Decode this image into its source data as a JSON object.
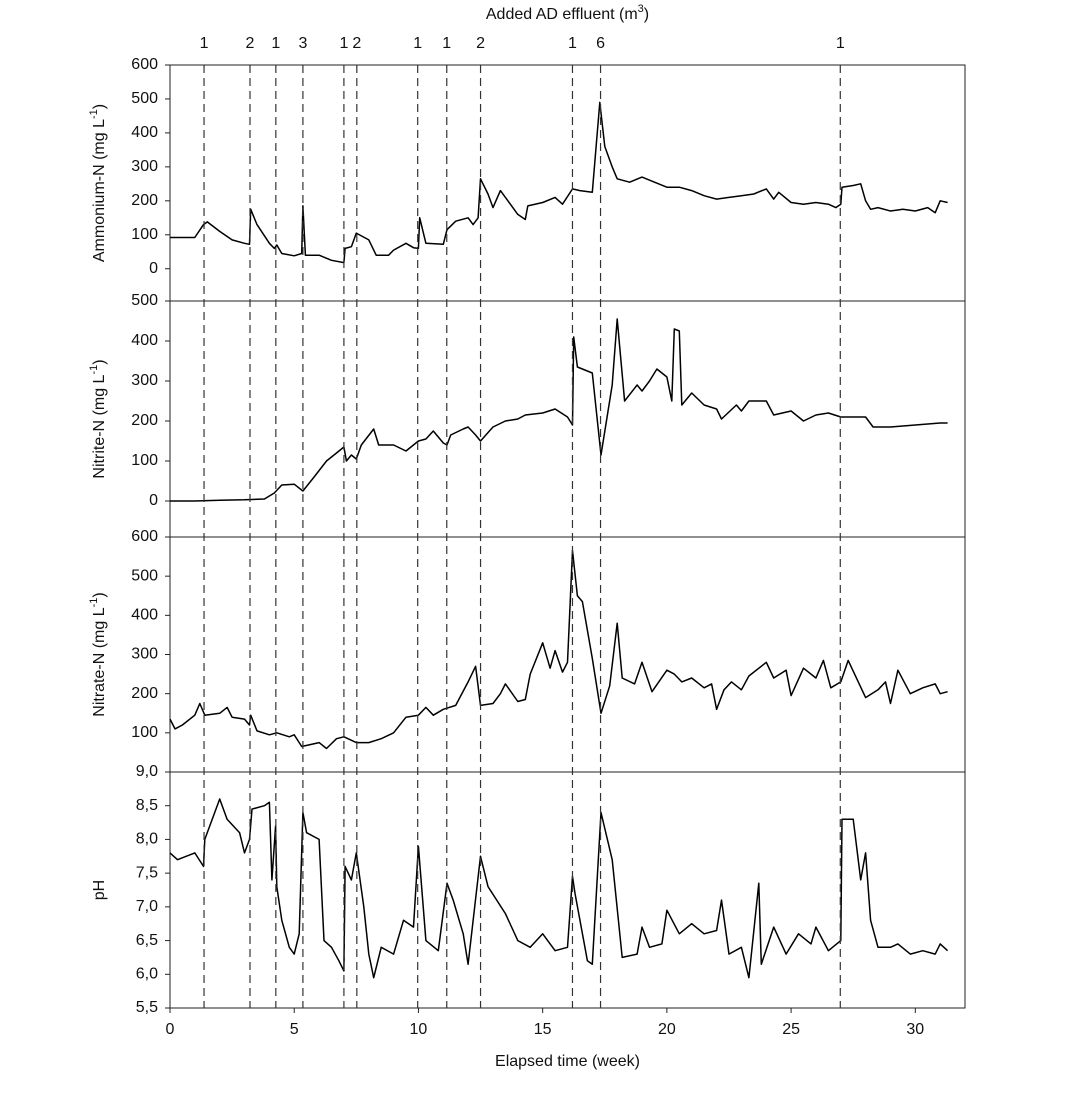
{
  "effluent_additions": {
    "label_parts": [
      "Added AD effluent (m",
      "3",
      ")"
    ],
    "events": [
      {
        "week": 1.37,
        "amount": 1
      },
      {
        "week": 3.22,
        "amount": 2
      },
      {
        "week": 4.26,
        "amount": 1
      },
      {
        "week": 5.35,
        "amount": 3
      },
      {
        "week": 7.0,
        "amount": 1
      },
      {
        "week": 7.52,
        "amount": 2
      },
      {
        "week": 9.97,
        "amount": 1
      },
      {
        "week": 11.14,
        "amount": 1
      },
      {
        "week": 12.5,
        "amount": 2
      },
      {
        "week": 16.2,
        "amount": 1
      },
      {
        "week": 17.33,
        "amount": 6
      },
      {
        "week": 26.98,
        "amount": 1
      }
    ]
  },
  "chart_data": [
    {
      "type": "line",
      "ylabel_parts": [
        "Ammonium-N (mg L",
        "-1",
        ")"
      ],
      "xlim": [
        0,
        32
      ],
      "ylim": [
        -95,
        600
      ],
      "yticks": [
        0,
        100,
        200,
        300,
        400,
        500,
        600
      ],
      "color": "#000000",
      "x": [
        0,
        0.5,
        1.0,
        1.35,
        1.5,
        2.0,
        2.5,
        3.0,
        3.2,
        3.25,
        3.5,
        4.0,
        4.2,
        4.3,
        4.5,
        5.0,
        5.3,
        5.35,
        5.45,
        6.0,
        6.5,
        7.0,
        7.05,
        7.3,
        7.5,
        8.0,
        8.3,
        8.8,
        9.0,
        9.5,
        9.8,
        10.0,
        10.05,
        10.3,
        11.0,
        11.15,
        11.5,
        12.0,
        12.2,
        12.4,
        12.5,
        12.8,
        13.0,
        13.3,
        13.6,
        14.0,
        14.3,
        14.4,
        15.0,
        15.5,
        15.8,
        16.2,
        16.5,
        17.0,
        17.3,
        17.5,
        17.8,
        18.0,
        18.5,
        19.0,
        19.5,
        20.0,
        20.5,
        21.0,
        21.5,
        22.0,
        22.5,
        23.0,
        23.5,
        24.0,
        24.3,
        24.5,
        25.0,
        25.5,
        26.0,
        26.5,
        26.8,
        27.0,
        27.05,
        27.5,
        27.8,
        28.0,
        28.2,
        28.5,
        29.0,
        29.5,
        30.0,
        30.5,
        30.8,
        31.0,
        31.3
      ],
      "values": [
        92,
        92,
        92,
        130,
        138,
        110,
        85,
        75,
        72,
        175,
        130,
        75,
        60,
        70,
        45,
        38,
        45,
        185,
        40,
        40,
        25,
        18,
        60,
        65,
        105,
        85,
        40,
        40,
        55,
        75,
        62,
        60,
        150,
        75,
        72,
        115,
        140,
        150,
        130,
        150,
        265,
        220,
        180,
        230,
        200,
        160,
        145,
        185,
        195,
        210,
        190,
        235,
        230,
        225,
        490,
        360,
        300,
        265,
        255,
        270,
        255,
        240,
        240,
        230,
        215,
        205,
        210,
        215,
        220,
        235,
        205,
        225,
        195,
        190,
        195,
        190,
        180,
        190,
        240,
        245,
        250,
        200,
        175,
        180,
        170,
        175,
        170,
        180,
        165,
        200,
        195
      ]
    },
    {
      "type": "line",
      "ylabel_parts": [
        "Nitrite-N (mg L",
        "-1",
        ")"
      ],
      "xlim": [
        0,
        32
      ],
      "ylim": [
        -90,
        500
      ],
      "yticks": [
        0,
        100,
        200,
        300,
        400,
        500
      ],
      "color": "#000000",
      "x": [
        0,
        1,
        2,
        3,
        3.8,
        4.2,
        4.5,
        5.0,
        5.35,
        5.8,
        6.3,
        6.7,
        7.0,
        7.1,
        7.3,
        7.5,
        7.7,
        8.2,
        8.4,
        9.0,
        9.5,
        10.0,
        10.3,
        10.6,
        11.0,
        11.15,
        11.3,
        11.8,
        12.0,
        12.3,
        12.5,
        13.0,
        13.5,
        14.0,
        14.3,
        15.0,
        15.5,
        16.0,
        16.2,
        16.25,
        16.4,
        17.0,
        17.35,
        17.8,
        18.0,
        18.3,
        18.8,
        19.0,
        19.3,
        19.6,
        20.0,
        20.2,
        20.3,
        20.5,
        20.6,
        21.0,
        21.5,
        22.0,
        22.2,
        22.8,
        23.0,
        23.3,
        24.0,
        24.3,
        25.0,
        25.5,
        26.0,
        26.5,
        27.0,
        28.0,
        28.3,
        29.0,
        30.0,
        31.0,
        31.3
      ],
      "values": [
        0,
        0,
        2,
        3,
        5,
        20,
        40,
        42,
        25,
        60,
        100,
        120,
        135,
        100,
        115,
        105,
        140,
        180,
        140,
        140,
        125,
        150,
        155,
        175,
        145,
        140,
        165,
        180,
        185,
        165,
        150,
        185,
        200,
        205,
        215,
        220,
        230,
        210,
        190,
        410,
        335,
        320,
        115,
        290,
        455,
        250,
        290,
        275,
        300,
        330,
        310,
        250,
        430,
        425,
        240,
        270,
        240,
        230,
        205,
        240,
        225,
        250,
        250,
        215,
        225,
        200,
        215,
        220,
        210,
        210,
        185,
        185,
        190,
        195,
        195
      ]
    },
    {
      "type": "line",
      "ylabel_parts": [
        "Nitrate-N (mg L",
        "-1",
        ")"
      ],
      "xlim": [
        0,
        32
      ],
      "ylim": [
        0,
        600
      ],
      "yticks": [
        100,
        200,
        300,
        400,
        500,
        600
      ],
      "color": "#000000",
      "x": [
        0,
        0.2,
        0.5,
        1.0,
        1.2,
        1.4,
        2.0,
        2.3,
        2.5,
        3.0,
        3.2,
        3.25,
        3.5,
        4.0,
        4.3,
        4.8,
        5.0,
        5.3,
        6.0,
        6.3,
        6.7,
        7.0,
        7.5,
        8.0,
        8.5,
        9.0,
        9.5,
        10.0,
        10.3,
        10.6,
        11.0,
        11.5,
        12.0,
        12.3,
        12.5,
        13.0,
        13.3,
        13.5,
        14.0,
        14.3,
        14.5,
        15.0,
        15.3,
        15.5,
        15.8,
        16.0,
        16.2,
        16.4,
        16.6,
        17.0,
        17.35,
        17.7,
        18.0,
        18.2,
        18.7,
        19.0,
        19.4,
        20.0,
        20.3,
        20.6,
        21.0,
        21.5,
        21.8,
        22.0,
        22.3,
        22.6,
        23.0,
        23.3,
        24.0,
        24.3,
        24.8,
        25.0,
        25.5,
        26.0,
        26.3,
        26.6,
        27.0,
        27.3,
        28.0,
        28.5,
        28.8,
        29.0,
        29.3,
        29.8,
        30.3,
        30.8,
        31.0,
        31.3
      ],
      "values": [
        135,
        110,
        120,
        145,
        175,
        145,
        150,
        165,
        140,
        135,
        120,
        145,
        105,
        95,
        100,
        90,
        95,
        65,
        75,
        60,
        85,
        90,
        75,
        75,
        85,
        100,
        140,
        145,
        165,
        145,
        160,
        170,
        230,
        270,
        170,
        175,
        200,
        225,
        180,
        185,
        250,
        330,
        265,
        310,
        255,
        280,
        565,
        450,
        435,
        290,
        150,
        220,
        380,
        240,
        225,
        280,
        205,
        260,
        250,
        230,
        240,
        215,
        225,
        160,
        210,
        230,
        210,
        245,
        280,
        240,
        260,
        195,
        265,
        240,
        285,
        215,
        230,
        285,
        190,
        210,
        230,
        175,
        260,
        200,
        215,
        225,
        200,
        205
      ]
    },
    {
      "type": "line",
      "ylabel_parts": [
        "pH"
      ],
      "xlim": [
        0,
        32
      ],
      "ylim": [
        5.5,
        9.0
      ],
      "yticks": [
        {
          "value": 5.5,
          "label": "5,5"
        },
        {
          "value": 6.0,
          "label": "6,0"
        },
        {
          "value": 6.5,
          "label": "6,5"
        },
        {
          "value": 7.0,
          "label": "7,0"
        },
        {
          "value": 7.5,
          "label": "7,5"
        },
        {
          "value": 8.0,
          "label": "8,0"
        },
        {
          "value": 8.5,
          "label": "8,5"
        },
        {
          "value": 9.0,
          "label": "9,0"
        }
      ],
      "xticks": [
        0,
        5,
        10,
        15,
        20,
        25,
        30
      ],
      "xlabel": "Elapsed time (week)",
      "color": "#000000",
      "x": [
        0,
        0.3,
        1.0,
        1.35,
        1.4,
        2.0,
        2.3,
        2.8,
        3.0,
        3.2,
        3.3,
        3.8,
        4.0,
        4.1,
        4.25,
        4.3,
        4.5,
        4.8,
        5.0,
        5.2,
        5.35,
        5.5,
        6.0,
        6.2,
        6.5,
        6.8,
        7.0,
        7.05,
        7.3,
        7.5,
        7.8,
        8.0,
        8.2,
        8.5,
        9.0,
        9.4,
        9.8,
        10.0,
        10.3,
        10.8,
        11.15,
        11.4,
        11.8,
        12.0,
        12.5,
        12.8,
        13.5,
        14.0,
        14.5,
        15.0,
        15.5,
        16.0,
        16.2,
        16.3,
        16.8,
        17.0,
        17.35,
        17.8,
        18.2,
        18.8,
        19.0,
        19.3,
        19.8,
        20.0,
        20.5,
        21.0,
        21.5,
        22.0,
        22.2,
        22.5,
        23.0,
        23.3,
        23.7,
        23.8,
        24.3,
        24.8,
        25.3,
        25.8,
        26.0,
        26.5,
        27.0,
        27.05,
        27.5,
        27.8,
        28.0,
        28.2,
        28.5,
        29.0,
        29.3,
        29.8,
        30.3,
        30.8,
        31.0,
        31.3
      ],
      "values": [
        7.8,
        7.7,
        7.8,
        7.6,
        8.0,
        8.6,
        8.3,
        8.1,
        7.8,
        8.0,
        8.45,
        8.5,
        8.55,
        7.4,
        8.2,
        7.3,
        6.8,
        6.4,
        6.3,
        6.6,
        8.4,
        8.1,
        8.0,
        6.5,
        6.4,
        6.2,
        6.05,
        7.6,
        7.4,
        7.8,
        7.0,
        6.3,
        5.95,
        6.4,
        6.3,
        6.8,
        6.7,
        7.9,
        6.5,
        6.35,
        7.35,
        7.1,
        6.6,
        6.15,
        7.75,
        7.3,
        6.9,
        6.5,
        6.4,
        6.6,
        6.35,
        6.4,
        7.45,
        7.2,
        6.2,
        6.15,
        8.4,
        7.7,
        6.25,
        6.3,
        6.7,
        6.4,
        6.45,
        6.95,
        6.6,
        6.75,
        6.6,
        6.65,
        7.1,
        6.3,
        6.4,
        5.95,
        7.35,
        6.15,
        6.7,
        6.3,
        6.6,
        6.45,
        6.7,
        6.35,
        6.5,
        8.3,
        8.3,
        7.4,
        7.8,
        6.8,
        6.4,
        6.4,
        6.45,
        6.3,
        6.35,
        6.3,
        6.45,
        6.35
      ]
    }
  ]
}
